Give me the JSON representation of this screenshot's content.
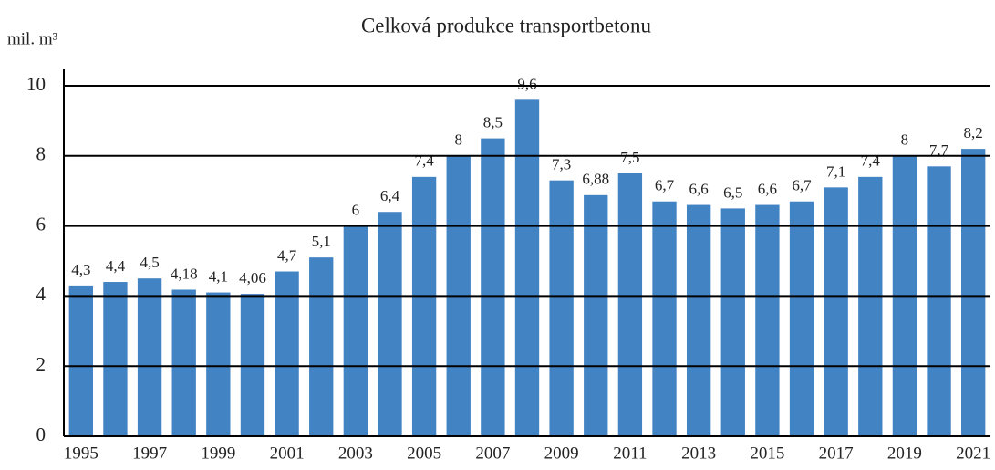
{
  "chart_data": {
    "type": "bar",
    "title": "Celková produkce transportbetonu",
    "y_label": "mil. m³",
    "categories": [
      "1995",
      null,
      "1997",
      null,
      "1999",
      null,
      "2001",
      null,
      "2003",
      null,
      "2005",
      null,
      "2007",
      null,
      "2009",
      null,
      "2011",
      null,
      "2013",
      null,
      "2015",
      null,
      "2017",
      null,
      "2019",
      null,
      "2021"
    ],
    "values": [
      4.3,
      4.4,
      4.5,
      4.18,
      4.1,
      4.06,
      4.7,
      5.1,
      6,
      6.4,
      7.4,
      8,
      8.5,
      9.6,
      7.3,
      6.88,
      7.5,
      6.7,
      6.6,
      6.5,
      6.6,
      6.7,
      7.1,
      7.4,
      8,
      7.7,
      8.2
    ],
    "value_labels": [
      "4,3",
      "4,4",
      "4,5",
      "4,18",
      "4,1",
      "4,06",
      "4,7",
      "5,1",
      "6",
      "6,4",
      "7,4",
      "8",
      "8,5",
      "9,6",
      "7,3",
      "6,88",
      "7,5",
      "6,7",
      "6,6",
      "6,5",
      "6,6",
      "6,7",
      "7,1",
      "7,4",
      "8",
      "7,7",
      "8,2"
    ],
    "color": "#4283c4",
    "ylim": [
      0,
      10
    ],
    "yticks": [
      0,
      2,
      4,
      6,
      8,
      10
    ],
    "grid": true
  }
}
